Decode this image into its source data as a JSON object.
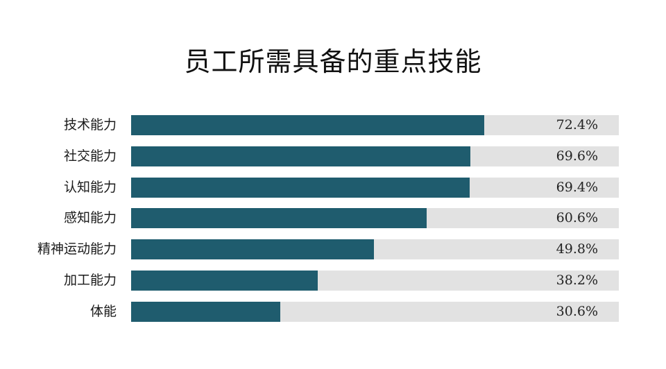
{
  "title": "员工所需具备的重点技能",
  "colors": {
    "bar": "#1f5c6e",
    "track": "#e2e2e2",
    "text": "#1a1a1a"
  },
  "chart_data": {
    "type": "bar",
    "orientation": "horizontal",
    "title": "员工所需具备的重点技能",
    "xlabel": "",
    "ylabel": "",
    "xlim": [
      0,
      100
    ],
    "grid": false,
    "legend": null,
    "categories": [
      "技术能力",
      "社交能力",
      "认知能力",
      "感知能力",
      "精神运动能力",
      "加工能力",
      "体能"
    ],
    "values": [
      72.4,
      69.6,
      69.4,
      60.6,
      49.8,
      38.2,
      30.6
    ],
    "value_labels": [
      "72.4%",
      "69.6%",
      "69.4%",
      "60.6%",
      "49.8%",
      "38.2%",
      "30.6%"
    ],
    "unit": "%"
  }
}
